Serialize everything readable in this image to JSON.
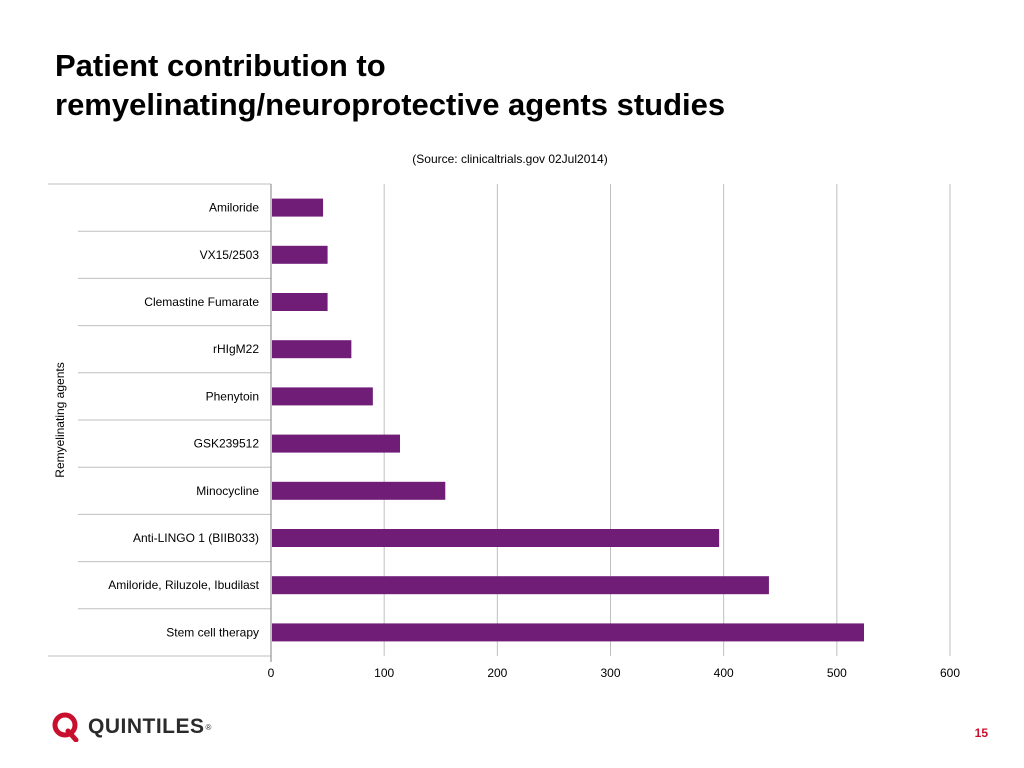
{
  "slide": {
    "title_line1": "Patient contribution to",
    "title_line2": "remyelinating/neuroprotective agents studies",
    "source": "(Source: clinicaltrials.gov 02Jul2014)",
    "logo_text": "QUINTILES",
    "logo_mark": "®",
    "page_number": "15"
  },
  "colors": {
    "bar": "#6f1d77",
    "grid": "#bfbfbf",
    "logo": "#c8102e"
  },
  "chart_data": {
    "type": "bar",
    "orientation": "horizontal",
    "title": "",
    "xlabel": "",
    "ylabel": "Remyelinating agents",
    "categories": [
      "Amiloride",
      "VX15/2503",
      "Clemastine Fumarate",
      "rHIgM22",
      "Phenytoin",
      "GSK239512",
      "Minocycline",
      "Anti-LINGO 1 (BIIB033)",
      "Amiloride, Riluzole, Ibudilast",
      "Stem cell therapy"
    ],
    "values": [
      46,
      50,
      50,
      71,
      90,
      114,
      154,
      396,
      440,
      524
    ],
    "xlim": [
      0,
      600
    ],
    "xticks": [
      0,
      100,
      200,
      300,
      400,
      500,
      600
    ],
    "grid": true,
    "legend": "none"
  }
}
